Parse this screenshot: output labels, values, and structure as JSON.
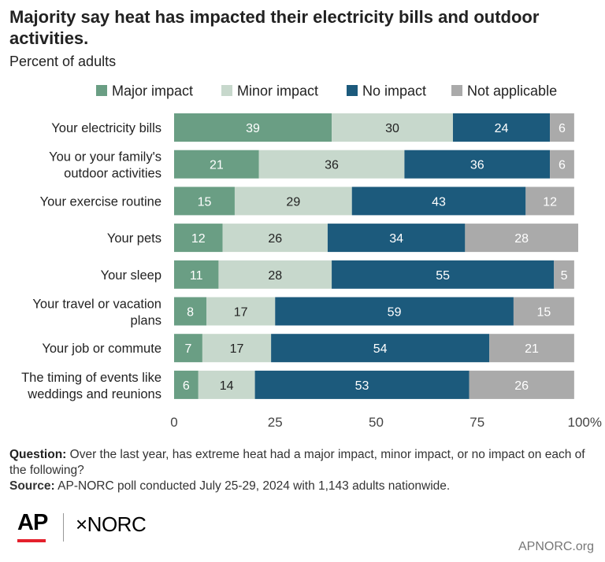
{
  "title": "Majority say heat has impacted their electricity bills and outdoor activities.",
  "subtitle": "Percent of adults",
  "footer": {
    "question_label": "Question:",
    "question_text": "Over the last year, has extreme heat had a major impact, minor impact, or no impact on each of the following?",
    "source_label": "Source:",
    "source_text": "AP-NORC poll conducted July 25-29, 2024 with 1,143 adults nationwide."
  },
  "logos": {
    "ap": "AP",
    "norc": "×NORC",
    "credit": "APNORC.org"
  },
  "colors": {
    "major": "#6a9e84",
    "minor": "#c7d8cc",
    "none": "#1c5a7c",
    "na": "#aaaaaa"
  },
  "chart_data": {
    "type": "bar",
    "orientation": "horizontal",
    "stacked": true,
    "categories": [
      [
        "Your electricity bills"
      ],
      [
        "You or your family's",
        "outdoor activities"
      ],
      [
        "Your exercise routine"
      ],
      [
        "Your pets"
      ],
      [
        "Your sleep"
      ],
      [
        "Your travel or vacation",
        "plans"
      ],
      [
        "Your job or commute"
      ],
      [
        "The timing of events like",
        "weddings and reunions"
      ]
    ],
    "series": [
      {
        "name": "Major impact",
        "color": "#6a9e84",
        "label_color": "#ffffff",
        "values": [
          39,
          21,
          15,
          12,
          11,
          8,
          7,
          6
        ]
      },
      {
        "name": "Minor impact",
        "color": "#c7d8cc",
        "label_color": "#222222",
        "values": [
          30,
          36,
          29,
          26,
          28,
          17,
          17,
          14
        ]
      },
      {
        "name": "No impact",
        "color": "#1c5a7c",
        "label_color": "#ffffff",
        "values": [
          24,
          36,
          43,
          34,
          55,
          59,
          54,
          53
        ]
      },
      {
        "name": "Not applicable",
        "color": "#aaaaaa",
        "label_color": "#ffffff",
        "values": [
          6,
          6,
          12,
          28,
          5,
          15,
          21,
          26
        ]
      }
    ],
    "xlim": [
      0,
      100
    ],
    "xticks": [
      "0",
      "25",
      "50",
      "75",
      "100%"
    ],
    "legend_position": "top",
    "grid": false
  }
}
